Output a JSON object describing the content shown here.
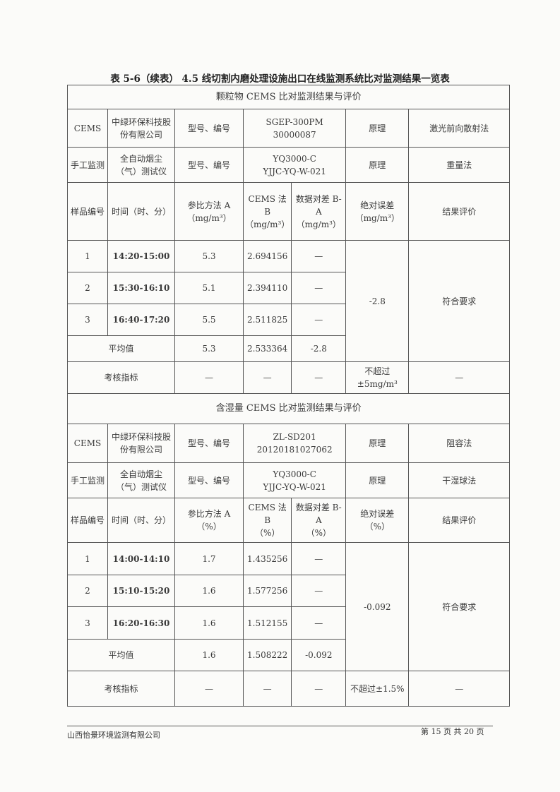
{
  "title": "表 5-6（续表） 4.5 线切割内磨处理设施出口在线监测系统比对监测结果一览表",
  "sections": [
    {
      "heading": "颗粒物 CEMS 比对监测结果与评价",
      "cems": {
        "label": "CEMS",
        "maker": "中绿环保科技股份有限公司",
        "model_label": "型号、编号",
        "model": "SGEP-300PM\n30000087",
        "principle_label": "原理",
        "principle": "激光前向散射法"
      },
      "manual": {
        "label": "手工监测",
        "maker": "全自动烟尘（气）测试仪",
        "model_label": "型号、编号",
        "model": "YQ3000-C\nYJJC-YQ-W-021",
        "principle_label": "原理",
        "principle": "重量法"
      },
      "headers": [
        "样品编号",
        "时间（时、分）",
        "参比方法 A\n（mg/m³）",
        "CEMS 法 B\n（mg/m³）",
        "数据对差 B-A\n（mg/m³）",
        "绝对误差\n（mg/m³）",
        "结果评价"
      ],
      "rows": [
        {
          "no": "1",
          "time": "14:20-15:00",
          "a": "5.3",
          "b": "2.694156",
          "diff": "—"
        },
        {
          "no": "2",
          "time": "15:30-16:10",
          "a": "5.1",
          "b": "2.394110",
          "diff": "—"
        },
        {
          "no": "3",
          "time": "16:40-17:20",
          "a": "5.5",
          "b": "2.511825",
          "diff": "—"
        }
      ],
      "abs_error": "-2.8",
      "result": "符合要求",
      "avg": {
        "label": "平均值",
        "a": "5.3",
        "b": "2.533364",
        "diff": "-2.8"
      },
      "criteria": {
        "label": "考核指标",
        "a": "—",
        "b": "—",
        "diff": "—",
        "abs": "不超过±5mg/m³",
        "result": "—"
      }
    },
    {
      "heading": "含湿量 CEMS 比对监测结果与评价",
      "cems": {
        "label": "CEMS",
        "maker": "中绿环保科技股份有限公司",
        "model_label": "型号、编号",
        "model": "ZL-SD201\n20120181027062",
        "principle_label": "原理",
        "principle": "阻容法"
      },
      "manual": {
        "label": "手工监测",
        "maker": "全自动烟尘（气）测试仪",
        "model_label": "型号、编号",
        "model": "YQ3000-C\nYJJC-YQ-W-021",
        "principle_label": "原理",
        "principle": "干湿球法"
      },
      "headers": [
        "样品编号",
        "时间（时、分）",
        "参比方法 A\n（%）",
        "CEMS 法 B\n（%）",
        "数据对差 B-A\n（%）",
        "绝对误差\n（%）",
        "结果评价"
      ],
      "rows": [
        {
          "no": "1",
          "time": "14:00-14:10",
          "a": "1.7",
          "b": "1.435256",
          "diff": "—"
        },
        {
          "no": "2",
          "time": "15:10-15:20",
          "a": "1.6",
          "b": "1.577256",
          "diff": "—"
        },
        {
          "no": "3",
          "time": "16:20-16:30",
          "a": "1.6",
          "b": "1.512155",
          "diff": "—"
        }
      ],
      "abs_error": "-0.092",
      "result": "符合要求",
      "avg": {
        "label": "平均值",
        "a": "1.6",
        "b": "1.508222",
        "diff": "-0.092"
      },
      "criteria": {
        "label": "考核指标",
        "a": "—",
        "b": "—",
        "diff": "—",
        "abs": "不超过±1.5%",
        "result": "—"
      }
    }
  ],
  "footer": {
    "company": "山西怡景环境监测有限公司",
    "page": "第 15 页 共 20 页"
  }
}
